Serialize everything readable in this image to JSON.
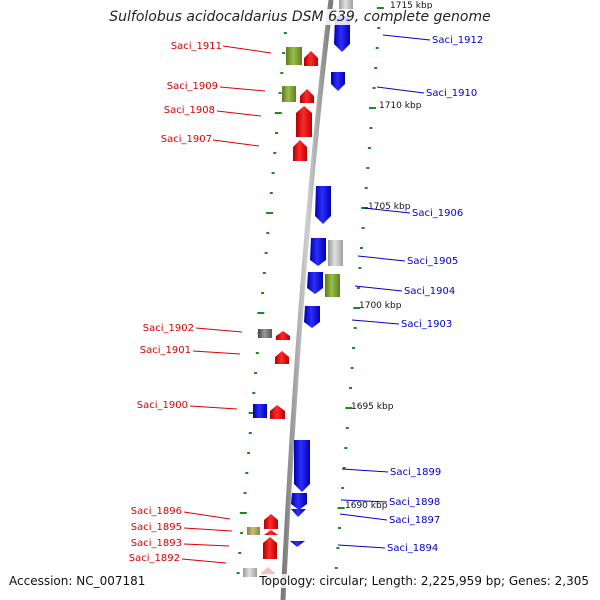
{
  "title": "Sulfolobus acidocaldarius DSM 639, complete genome",
  "accession_text": "Accession: NC_007181",
  "summary_text": "Topology: circular; Length: 2,225,959 bp; Genes: 2,305",
  "colors": {
    "forward_label": "#dd0000",
    "reverse_label": "#0000cc",
    "forward_gene": "#ff1010",
    "reverse_gene": "#1a1aee",
    "backbone": "#9a9a9a",
    "tick": "#1c8a1c"
  },
  "kbp_markers": [
    "1715 kbp",
    "1710 kbp",
    "1705 kbp",
    "1700 kbp",
    "1695 kbp",
    "1690 kbp"
  ],
  "genes_forward": [
    {
      "name": "Saci_1911"
    },
    {
      "name": "Saci_1909"
    },
    {
      "name": "Saci_1908"
    },
    {
      "name": "Saci_1907"
    },
    {
      "name": "Saci_1902"
    },
    {
      "name": "Saci_1901"
    },
    {
      "name": "Saci_1900"
    },
    {
      "name": "Saci_1896"
    },
    {
      "name": "Saci_1895"
    },
    {
      "name": "Saci_1893"
    },
    {
      "name": "Saci_1892"
    }
  ],
  "genes_reverse": [
    {
      "name": "Saci_1912"
    },
    {
      "name": "Saci_1910"
    },
    {
      "name": "Saci_1906"
    },
    {
      "name": "Saci_1905"
    },
    {
      "name": "Saci_1904"
    },
    {
      "name": "Saci_1903"
    },
    {
      "name": "Saci_1899"
    },
    {
      "name": "Saci_1898"
    },
    {
      "name": "Saci_1897"
    },
    {
      "name": "Saci_1894"
    }
  ]
}
